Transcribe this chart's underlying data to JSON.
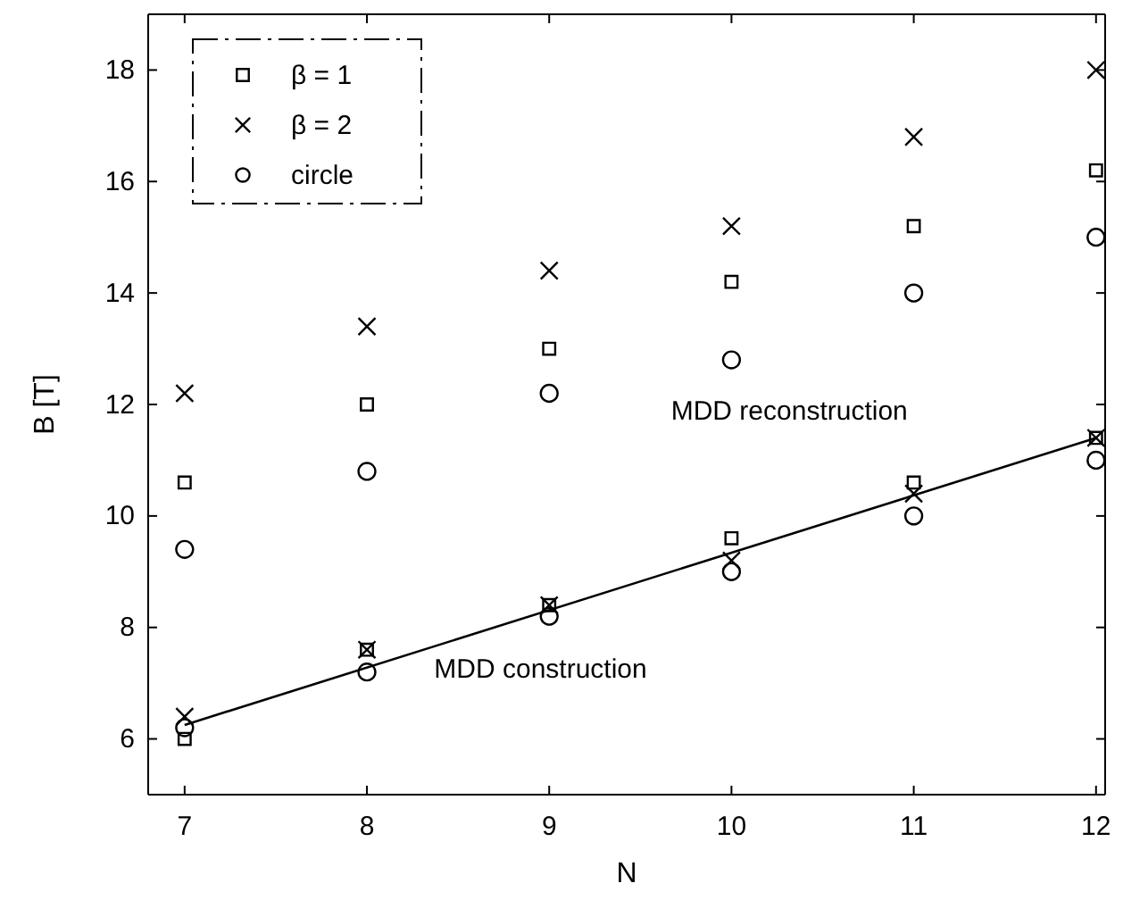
{
  "chart_data": {
    "type": "scatter",
    "xlabel": "N",
    "ylabel": "B [T]",
    "xlim": [
      6.8,
      12.05
    ],
    "ylim": [
      5,
      19
    ],
    "xticks": [
      7,
      8,
      9,
      10,
      11,
      12
    ],
    "yticks": [
      6,
      8,
      10,
      12,
      14,
      16,
      18
    ],
    "grid": false,
    "legend": "top left",
    "series": [
      {
        "name": "β = 1",
        "color": "#000000",
        "marker": "square",
        "x": [
          7,
          8,
          9,
          10,
          11,
          12,
          7,
          8,
          9,
          10,
          11,
          12
        ],
        "values": [
          10.6,
          12.0,
          13.0,
          14.2,
          15.2,
          16.2,
          6.0,
          7.6,
          8.4,
          9.6,
          10.6,
          11.4
        ]
      },
      {
        "name": "β = 2",
        "color": "#000000",
        "marker": "cross",
        "x": [
          7,
          8,
          9,
          10,
          11,
          12,
          7,
          8,
          9,
          10,
          11,
          12
        ],
        "values": [
          12.2,
          13.4,
          14.4,
          15.2,
          16.8,
          18.0,
          6.4,
          7.6,
          8.4,
          9.2,
          10.4,
          11.4
        ]
      },
      {
        "name": "circle",
        "color": "#000000",
        "marker": "circle",
        "x": [
          7,
          8,
          9,
          10,
          11,
          12,
          7,
          8,
          9,
          10,
          11,
          12
        ],
        "values": [
          9.4,
          10.8,
          12.2,
          12.8,
          14.0,
          15.0,
          6.2,
          7.2,
          8.2,
          9.0,
          10.0,
          11.0
        ]
      },
      {
        "type": "line",
        "color": "#000000",
        "marker": "none",
        "line_style": "solid",
        "x": [
          7,
          12
        ],
        "values": [
          6.25,
          11.4
        ]
      }
    ],
    "annotations": [
      "MDD reconstruction",
      "MDD construction"
    ]
  }
}
